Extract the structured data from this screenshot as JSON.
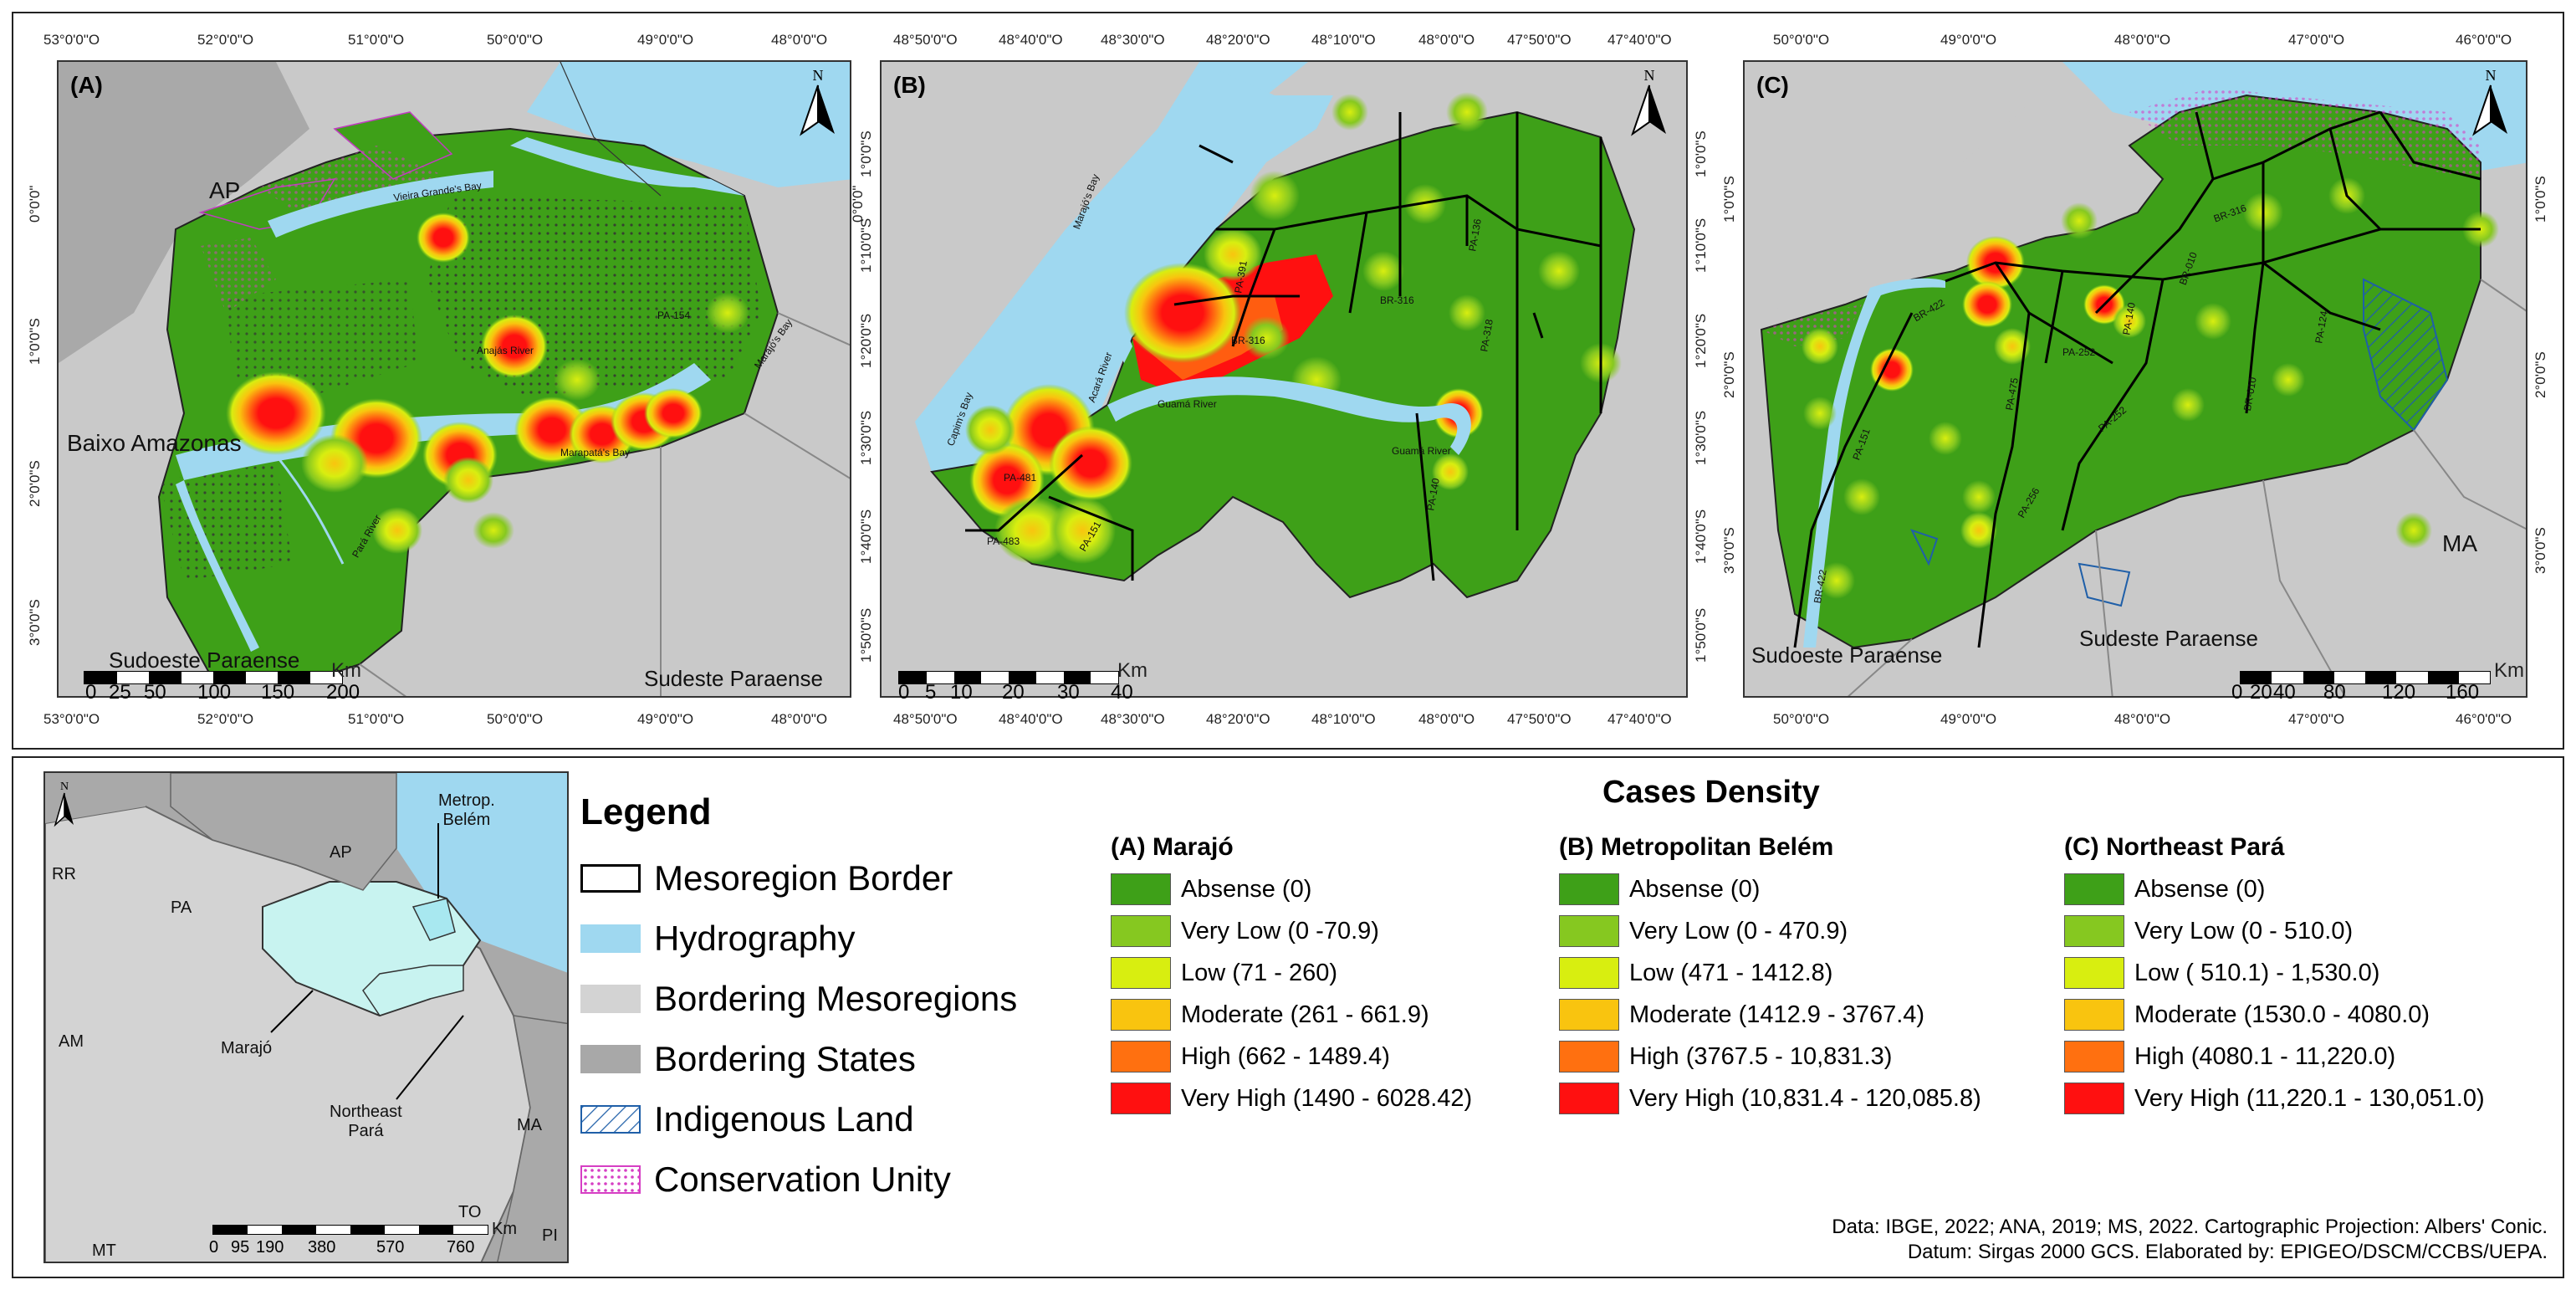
{
  "panels": {
    "A": {
      "label": "(A)",
      "top_coords": [
        "53°0'0\"O",
        "52°0'0\"O",
        "51°0'0\"O",
        "50°0'0\"O",
        "49°0'0\"O",
        "48°0'0\"O"
      ],
      "bottom_coords": [
        "53°0'0\"O",
        "52°0'0\"O",
        "51°0'0\"O",
        "50°0'0\"O",
        "49°0'0\"O",
        "48°0'0\"O"
      ],
      "left_coords": [
        "0°0'0\"",
        "1°0'0\"S",
        "2°0'0\"S",
        "3°0'0\"S"
      ],
      "places": {
        "ap": "AP",
        "baixo": "Baixo Amazonas",
        "sudoeste": "Sudoeste Paraense",
        "sudeste": "Sudeste Paraense"
      },
      "rivers": {
        "vieira": "Vieira Grande's Bay",
        "anajas": "Anajás River",
        "marajo": "Marajó's Bay",
        "pa154": "PA-154",
        "marapata": "Marapatá's Bay",
        "paru": "Pará River"
      },
      "scale": {
        "nums": [
          "0",
          "25",
          "50",
          "100",
          "150",
          "200"
        ],
        "unit": "Km"
      }
    },
    "B": {
      "label": "(B)",
      "top_coords": [
        "48°50'0\"O",
        "48°40'0\"O",
        "48°30'0\"O",
        "48°20'0\"O",
        "48°10'0\"O",
        "48°0'0\"O",
        "47°50'0\"O",
        "47°40'0\"O"
      ],
      "bottom_coords": [
        "48°50'0\"O",
        "48°40'0\"O",
        "48°30'0\"O",
        "48°20'0\"O",
        "48°10'0\"O",
        "48°0'0\"O",
        "47°50'0\"O",
        "47°40'0\"O"
      ],
      "left_coords": [
        "1°0'0\"S",
        "1°10'0\"S",
        "1°20'0\"S",
        "1°30'0\"S",
        "1°40'0\"S",
        "1°50'0\"S"
      ],
      "right_coords": [
        "1°0'0\"S",
        "1°10'0\"S",
        "1°20'0\"S",
        "1°30'0\"S",
        "1°40'0\"S",
        "1°50'0\"S"
      ],
      "left_top": "0°0'0\"",
      "roads": {
        "br316a": "BR-316",
        "br316b": "BR-316",
        "pa391": "PA-391",
        "pa136": "PA-136",
        "pa140": "PA-140",
        "pa318": "PA-318",
        "pa481": "PA-481",
        "pa483": "PA-483",
        "pa151": "PA-151"
      },
      "rivers": {
        "marajo": "Marajó's Bay",
        "caete": "Capim's Bay",
        "acara": "Acará River",
        "guama": "Guamá River",
        "guama2": "Guamá River"
      },
      "scale": {
        "nums": [
          "0",
          "5",
          "10",
          "20",
          "30",
          "40"
        ],
        "unit": "Km"
      }
    },
    "C": {
      "label": "(C)",
      "top_coords": [
        "50°0'0\"O",
        "49°0'0\"O",
        "48°0'0\"O",
        "47°0'0\"O",
        "46°0'0\"O"
      ],
      "bottom_coords": [
        "50°0'0\"O",
        "49°0'0\"O",
        "48°0'0\"O",
        "47°0'0\"O",
        "46°0'0\"O"
      ],
      "left_coords": [
        "1°0'0\"S",
        "2°0'0\"S",
        "3°0'0\"S"
      ],
      "right_coords": [
        "1°0'0\"S",
        "2°0'0\"S",
        "3°0'0\"S"
      ],
      "places": {
        "ma": "MA",
        "sudoeste": "Sudoeste Paraense",
        "sudeste": "Sudeste Paraense"
      },
      "roads": {
        "br422": "BR-422",
        "pa151": "PA-151",
        "pa475": "PA-475",
        "pa252": "PA-252",
        "pa140": "PA-140",
        "pa256": "PA-256",
        "br010": "BR-010",
        "pa124": "PA-124",
        "br316": "BR-316",
        "br010b": "BR-010",
        "pa252b": "PA-252",
        "br422b": "BR-422"
      },
      "scale": {
        "nums": [
          "0",
          "20",
          "40",
          "80",
          "120",
          "160"
        ],
        "unit": "Km"
      }
    }
  },
  "north_label": "N",
  "inset": {
    "labels": {
      "rr": "RR",
      "ap": "AP",
      "pa": "PA",
      "am": "AM",
      "ma": "MA",
      "to": "TO",
      "mt": "MT",
      "pi": "PI",
      "metro": "Metrop.\nBelém",
      "marajo": "Marajó",
      "northeast": "Northeast\nPará"
    },
    "scale": {
      "nums": [
        "0",
        "95",
        "190",
        "380",
        "570",
        "760"
      ],
      "unit": "Km"
    }
  },
  "legend": {
    "title": "Legend",
    "items": [
      {
        "label": "Mesoregion Border",
        "swatch": "#ffffff",
        "pattern": "none"
      },
      {
        "label": "Hydrography",
        "swatch": "#9fd8f0",
        "pattern": "none"
      },
      {
        "label": "Bordering Mesoregions",
        "swatch": "#d3d3d3",
        "pattern": "none"
      },
      {
        "label": "Bordering States",
        "swatch": "#a8a8a8",
        "pattern": "none"
      },
      {
        "label": "Indigenous Land",
        "swatch": "#ffffff",
        "pattern": "hatch"
      },
      {
        "label": "Conservation Unity",
        "swatch": "#ffffff",
        "pattern": "dots"
      }
    ]
  },
  "cases_density": {
    "title": "Cases Density",
    "colors": [
      "#3ea018",
      "#86c820",
      "#d8ee10",
      "#f9c40f",
      "#ff7010",
      "#ff1010"
    ],
    "columns": [
      {
        "title": "(A) Marajó",
        "items": [
          "Absense (0)",
          "Very Low (0 -70.9)",
          "Low (71 - 260)",
          "Moderate (261 - 661.9)",
          "High (662 - 1489.4)",
          "Very High (1490 - 6028.42)"
        ]
      },
      {
        "title": "(B) Metropolitan Belém",
        "items": [
          "Absense (0)",
          "Very Low (0 - 470.9)",
          "Low (471 - 1412.8)",
          "Moderate (1412.9 - 3767.4)",
          "High (3767.5 - 10,831.3)",
          "Very High (10,831.4 - 120,085.8)"
        ]
      },
      {
        "title": "(C) Northeast Pará",
        "items": [
          "Absense (0)",
          "Very Low (0 - 510.0)",
          "Low ( 510.1) - 1,530.0)",
          "Moderate (1530.0 - 4080.0)",
          "High (4080.1 - 11,220.0)",
          "Very High (11,220.1 - 130,051.0)"
        ]
      }
    ]
  },
  "credits": {
    "line1": "Data: IBGE, 2022; ANA, 2019; MS, 2022. Cartographic Projection: Albers' Conic.",
    "line2": "Datum: Sirgas 2000 GCS. Elaborated by: EPIGEO/DSCM/CCBS/UEPA."
  }
}
